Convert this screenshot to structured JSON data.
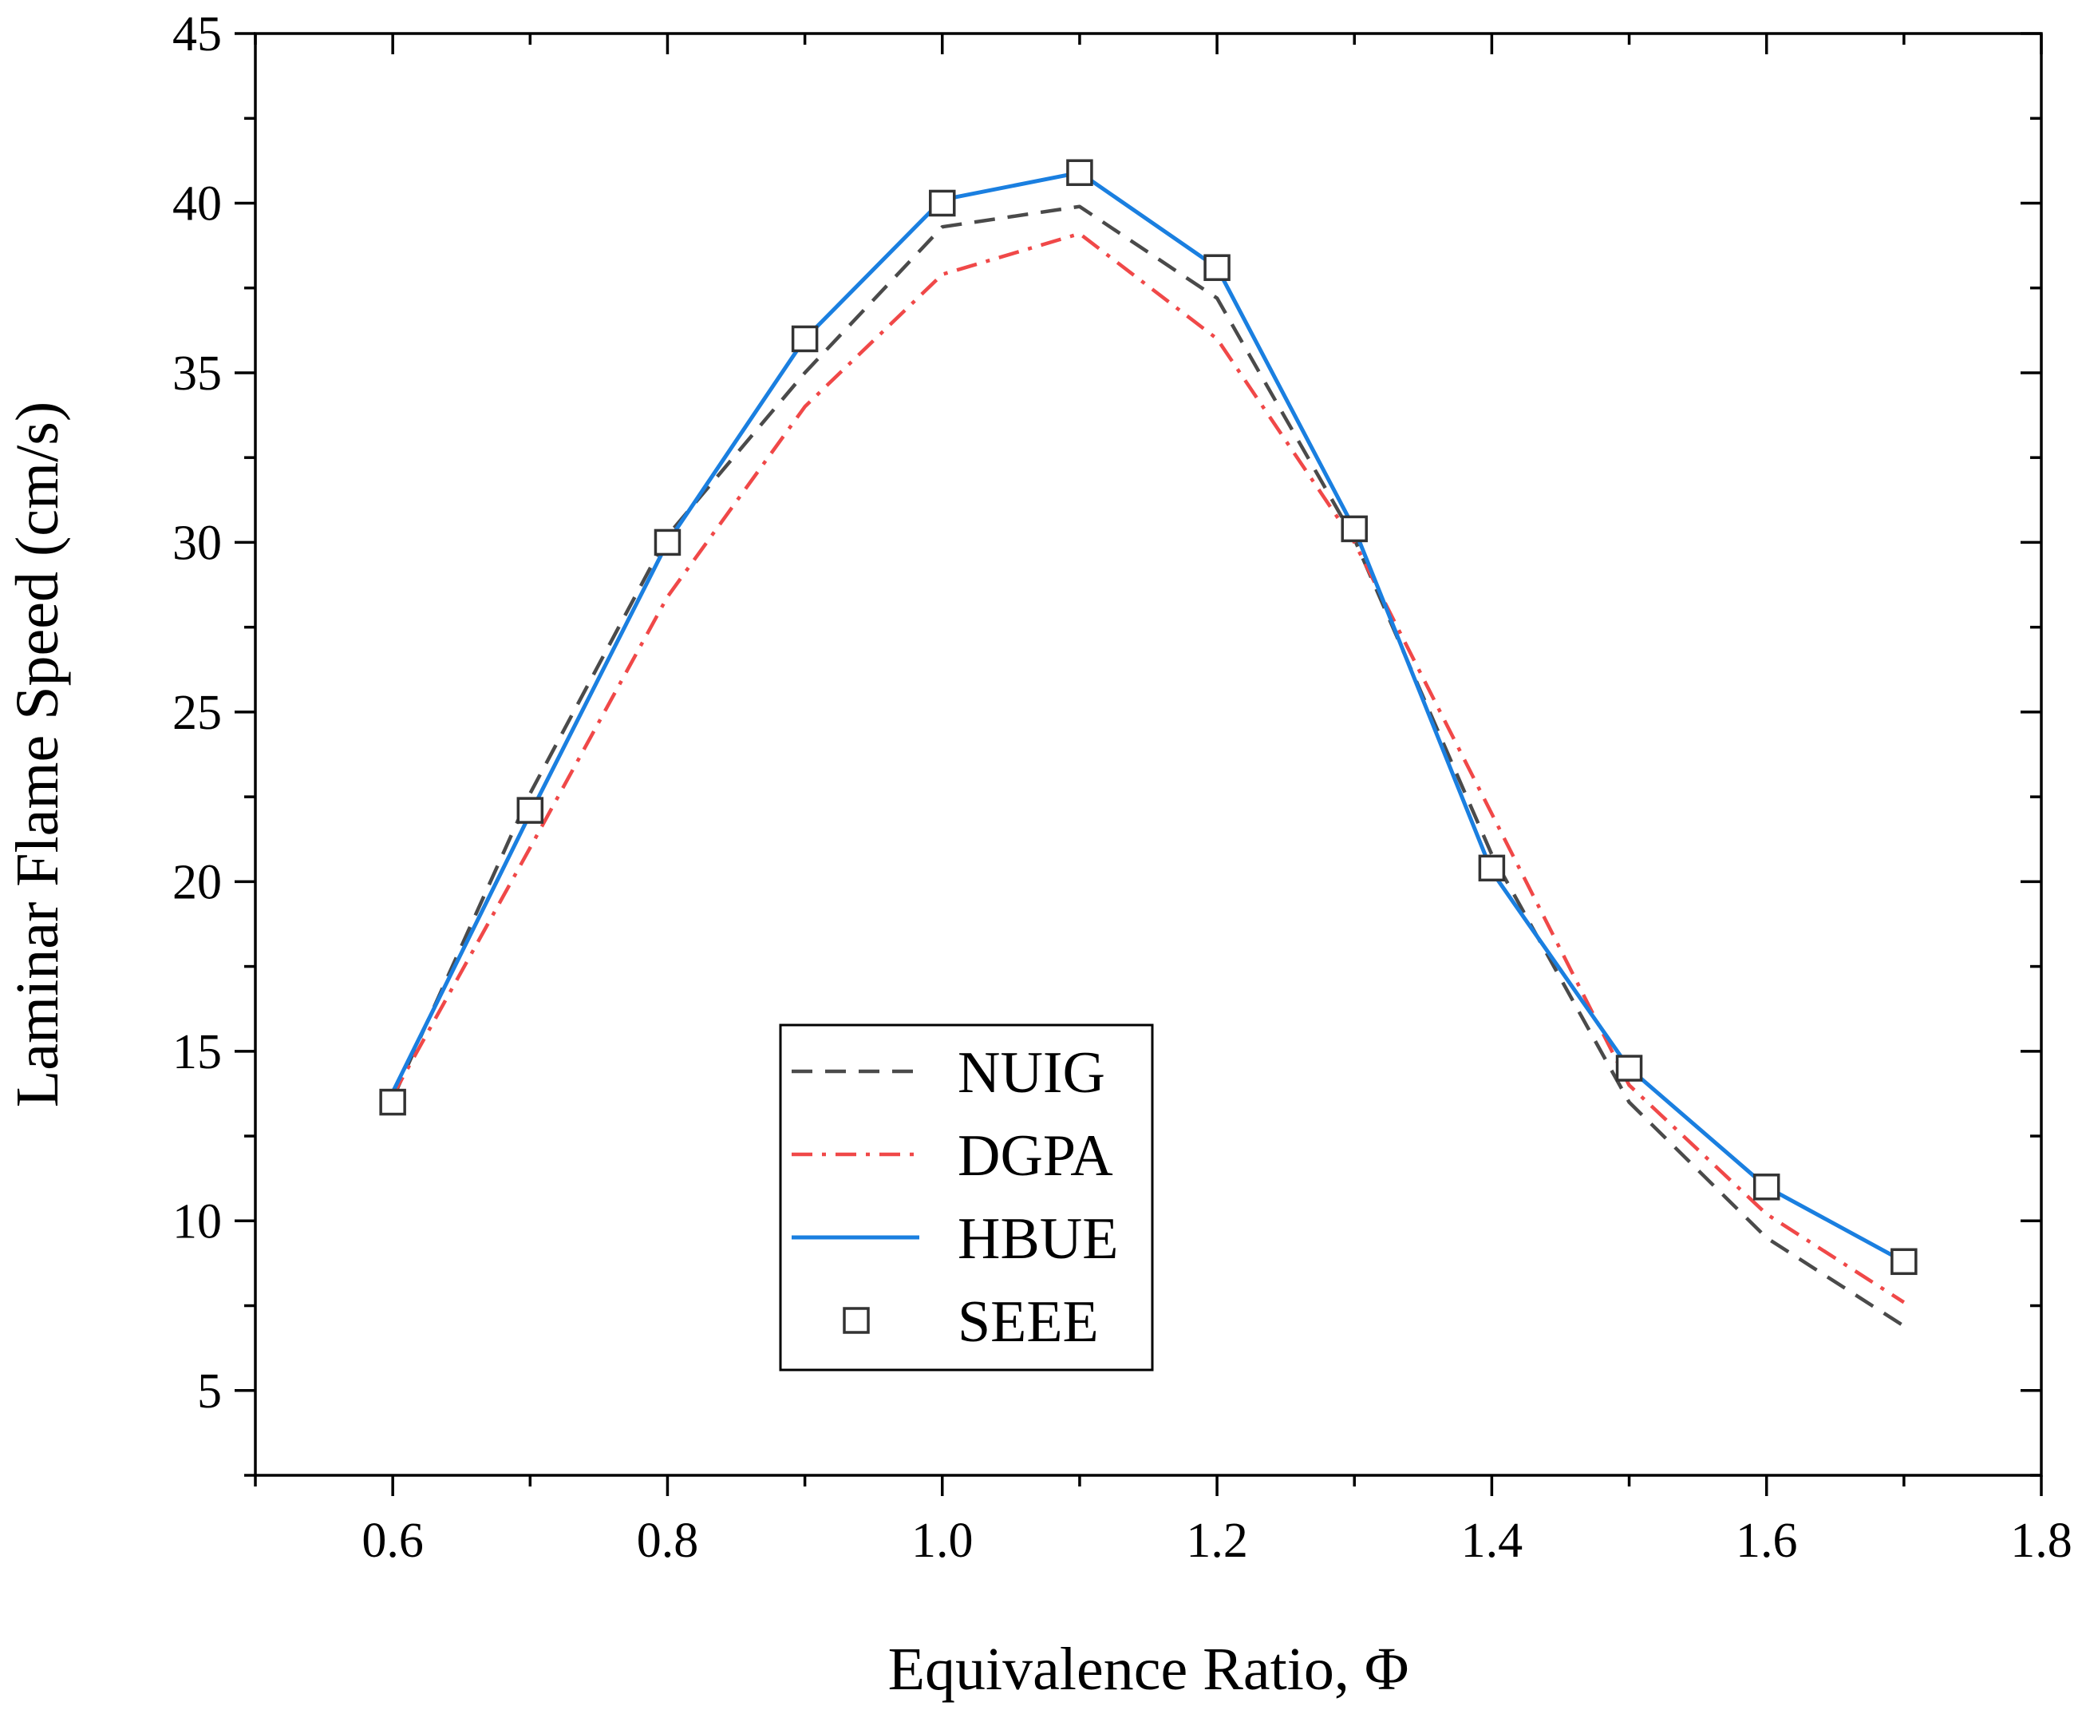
{
  "chart_data": {
    "type": "line",
    "title": "",
    "xlabel": "Equivalence Ratio, Φ",
    "ylabel": "Laminar Flame Speed (cm/s)",
    "xlim": [
      0.5,
      1.8
    ],
    "ylim": [
      2.5,
      45
    ],
    "x_ticks": [
      0.6,
      0.8,
      1.0,
      1.2,
      1.4,
      1.6,
      1.8
    ],
    "x_tick_labels": [
      "0.6",
      "0.8",
      "1.0",
      "1.2",
      "1.4",
      "1.6",
      "1.8"
    ],
    "y_ticks": [
      5,
      10,
      15,
      20,
      25,
      30,
      35,
      40,
      45
    ],
    "y_tick_labels": [
      "5",
      "10",
      "15",
      "20",
      "25",
      "30",
      "35",
      "40",
      "45"
    ],
    "grid": false,
    "legend_position": "bottom-center",
    "x": [
      0.6,
      0.7,
      0.8,
      0.9,
      1.0,
      1.1,
      1.2,
      1.3,
      1.4,
      1.5,
      1.6,
      1.7
    ],
    "series": [
      {
        "name": "NUIG",
        "style": "dashed",
        "color": "#4a4a4a",
        "values": [
          13.6,
          22.6,
          30.2,
          35.0,
          39.3,
          39.9,
          37.2,
          30.1,
          20.8,
          13.5,
          9.5,
          6.9
        ]
      },
      {
        "name": "DGPA",
        "style": "dash-dot",
        "color": "#f04848",
        "values": [
          13.7,
          21.0,
          28.4,
          34.0,
          37.9,
          39.1,
          36.0,
          30.0,
          22.0,
          14.0,
          10.2,
          7.6
        ]
      },
      {
        "name": "HBUE",
        "style": "solid",
        "color": "#1a7fe0",
        "values": [
          13.8,
          22.0,
          30.0,
          36.0,
          40.1,
          40.9,
          38.1,
          30.4,
          20.3,
          14.5,
          11.0,
          8.8
        ]
      },
      {
        "name": "SEEE",
        "style": "markers",
        "marker": "open-square",
        "color": "#333333",
        "values": [
          13.5,
          22.1,
          30.0,
          36.0,
          40.0,
          40.9,
          38.1,
          30.4,
          20.4,
          14.5,
          11.0,
          8.8
        ]
      }
    ]
  }
}
